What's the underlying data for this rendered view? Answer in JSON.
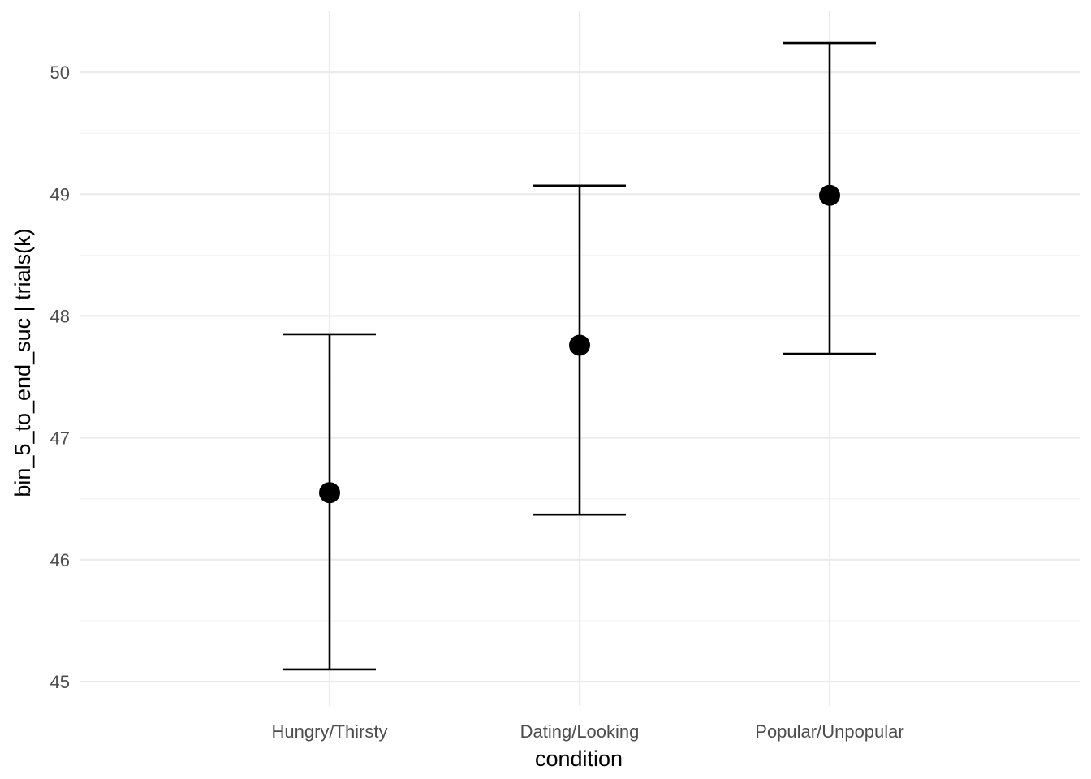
{
  "chart_data": {
    "type": "scatter",
    "subtype": "point-errorbar",
    "xlabel": "condition",
    "ylabel": "bin_5_to_end_suc | trials(k)",
    "categories": [
      "Hungry/Thirsty",
      "Dating/Looking",
      "Popular/Unpopular"
    ],
    "series": [
      {
        "estimate": [
          46.55,
          47.76,
          48.99
        ],
        "lower": [
          45.1,
          46.37,
          47.69
        ],
        "upper": [
          47.85,
          49.07,
          50.24
        ]
      }
    ],
    "ylim": [
      44.8,
      50.5
    ],
    "yticks": [
      45,
      46,
      47,
      48,
      49,
      50
    ],
    "ytick_labels": [
      "45",
      "46",
      "47",
      "48",
      "49",
      "50"
    ],
    "grid": true,
    "colors": {
      "point": "#000000",
      "errorbar": "#000000",
      "grid_major": "#ebebeb",
      "grid_minor": "#f5f5f5",
      "tick_text": "#4d4d4d",
      "axis_title": "#000000"
    }
  }
}
